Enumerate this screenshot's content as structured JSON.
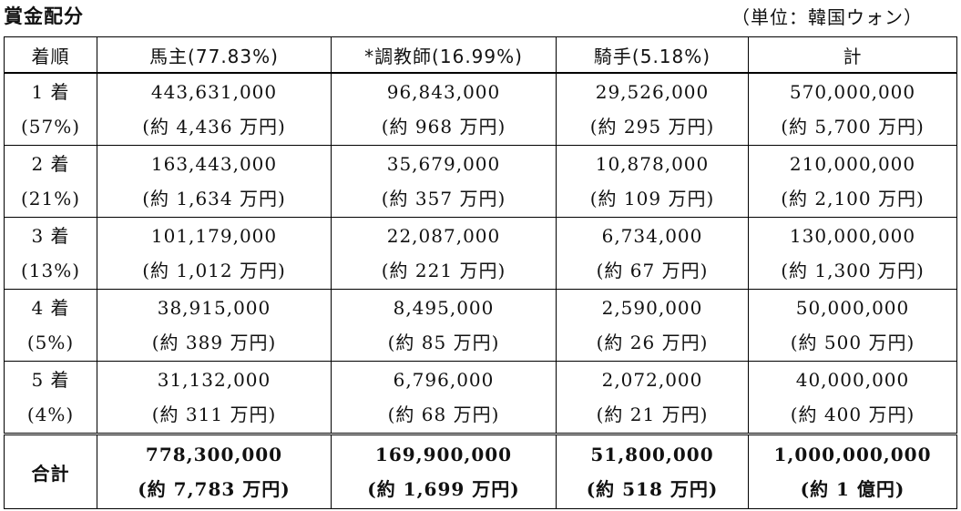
{
  "title": "賞金配分",
  "unit": "（単位：韓国ウォン）",
  "headers": [
    "着順",
    "馬主(77.83%)",
    "*調教師(16.99%)",
    "騎手(5.18%)",
    "計"
  ],
  "rows": [
    {
      "place": "1 着",
      "share": "(57%)",
      "cells": [
        {
          "amount": "443,631,000",
          "approx": "(約 4,436 万円)"
        },
        {
          "amount": "96,843,000",
          "approx": "(約 968 万円)"
        },
        {
          "amount": "29,526,000",
          "approx": "(約 295 万円)"
        },
        {
          "amount": "570,000,000",
          "approx": "(約 5,700 万円)"
        }
      ]
    },
    {
      "place": "2 着",
      "share": "(21%)",
      "cells": [
        {
          "amount": "163,443,000",
          "approx": "(約 1,634 万円)"
        },
        {
          "amount": "35,679,000",
          "approx": "(約 357 万円)"
        },
        {
          "amount": "10,878,000",
          "approx": "(約 109 万円)"
        },
        {
          "amount": "210,000,000",
          "approx": "(約 2,100 万円)"
        }
      ]
    },
    {
      "place": "3 着",
      "share": "(13%)",
      "cells": [
        {
          "amount": "101,179,000",
          "approx": "(約 1,012 万円)"
        },
        {
          "amount": "22,087,000",
          "approx": "(約 221 万円)"
        },
        {
          "amount": "6,734,000",
          "approx": "(約 67 万円)"
        },
        {
          "amount": "130,000,000",
          "approx": "(約 1,300 万円)"
        }
      ]
    },
    {
      "place": "4 着",
      "share": "(5%)",
      "cells": [
        {
          "amount": "38,915,000",
          "approx": "(約 389 万円)"
        },
        {
          "amount": "8,495,000",
          "approx": "(約 85 万円)"
        },
        {
          "amount": "2,590,000",
          "approx": "(約 26 万円)"
        },
        {
          "amount": "50,000,000",
          "approx": "(約 500 万円)"
        }
      ]
    },
    {
      "place": "5 着",
      "share": "(4%)",
      "cells": [
        {
          "amount": "31,132,000",
          "approx": "(約 311 万円)"
        },
        {
          "amount": "6,796,000",
          "approx": "(約 68 万円)"
        },
        {
          "amount": "2,072,000",
          "approx": "(約 21 万円)"
        },
        {
          "amount": "40,000,000",
          "approx": "(約 400 万円)"
        }
      ]
    }
  ],
  "total": {
    "label": "合計",
    "cells": [
      {
        "amount": "778,300,000",
        "approx": "(約 7,783 万円)"
      },
      {
        "amount": "169,900,000",
        "approx": "(約 1,699 万円)"
      },
      {
        "amount": "51,800,000",
        "approx": "(約 518 万円)"
      },
      {
        "amount": "1,000,000,000",
        "approx": "(約 1 億円)"
      }
    ]
  }
}
